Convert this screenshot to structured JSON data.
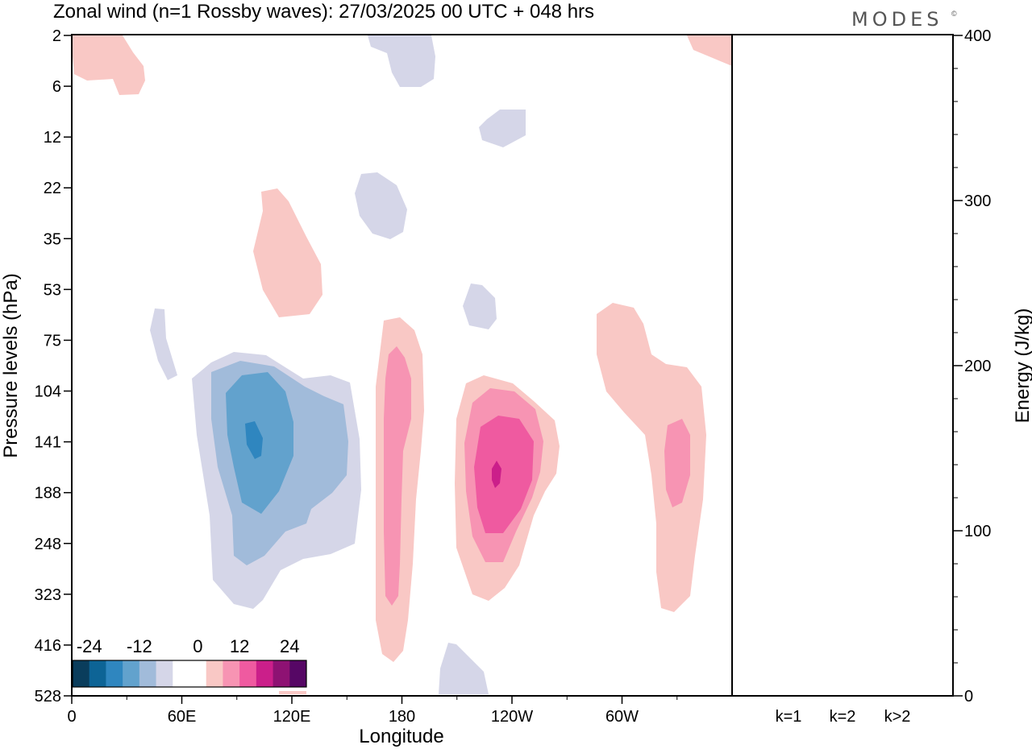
{
  "title": "Zonal wind (n=1 Rossby waves):  27/03/2025  00 UTC  + 048 hrs",
  "logo": "MODES",
  "logo_mark": "©",
  "chart_data": [
    {
      "type": "heatmap",
      "title": "Zonal wind (n=1 Rossby waves):  27/03/2025  00 UTC  + 048 hrs",
      "xlabel": "Longitude",
      "ylabel": "Pressure levels (hPa)",
      "x_tick_labels": [
        "0",
        "60E",
        "120E",
        "180",
        "120W",
        "60W"
      ],
      "y_tick_labels": [
        "2",
        "6",
        "12",
        "22",
        "35",
        "53",
        "75",
        "104",
        "141",
        "188",
        "248",
        "323",
        "416",
        "528"
      ],
      "grid": false,
      "colorbar": {
        "tick_labels": [
          "-24",
          "-12",
          "0",
          "12",
          "24"
        ],
        "colors": [
          "#0a3d5c",
          "#0d6496",
          "#2f86bf",
          "#62a2cd",
          "#a1bbda",
          "#d5d6e8",
          "#ffffff",
          "#ffffff",
          "#f9c8c5",
          "#f794b3",
          "#ef5aa0",
          "#cb1f8a",
          "#8e1273",
          "#560765"
        ]
      }
    },
    {
      "type": "bar",
      "categories": [
        "k=1",
        "k=2",
        "k>2"
      ],
      "values": [
        0.5,
        0.2,
        0.4
      ],
      "ylabel": "Energy (J/kg)",
      "ylim": [
        0,
        400
      ],
      "y_tick_labels": [
        "0",
        "100",
        "200",
        "300",
        "400"
      ],
      "grid": false
    }
  ]
}
